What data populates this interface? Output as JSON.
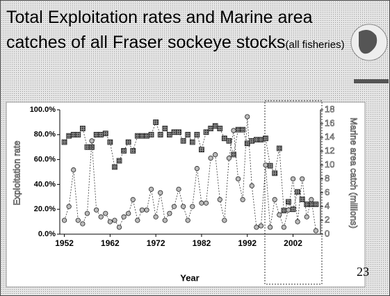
{
  "title": "Total Exploitation rates and Marine area catches of all Fraser sockeye stocks",
  "title_note": "(all fisheries)",
  "slide_number": "23",
  "chart_data": {
    "type": "line",
    "x_label": "Year",
    "y_label": "Exploitation rate",
    "y2_label": "Marine area catch (millions)",
    "x": [
      1952,
      1953,
      1954,
      1955,
      1956,
      1957,
      1958,
      1959,
      1960,
      1961,
      1962,
      1963,
      1964,
      1965,
      1966,
      1967,
      1968,
      1969,
      1970,
      1971,
      1972,
      1973,
      1974,
      1975,
      1976,
      1977,
      1978,
      1979,
      1980,
      1981,
      1982,
      1983,
      1984,
      1985,
      1986,
      1987,
      1988,
      1989,
      1990,
      1991,
      1992,
      1993,
      1994,
      1995,
      1996,
      1997,
      1998,
      1999,
      2000,
      2001,
      2002,
      2003,
      2004,
      2005,
      2006,
      2007
    ],
    "xlim": [
      1951,
      2008
    ],
    "xticks": [
      1952,
      1962,
      1972,
      1982,
      1992,
      2002
    ],
    "ylim": [
      0,
      100
    ],
    "yticks": [
      {
        "value": 0,
        "label": "0.0%"
      },
      {
        "value": 20,
        "label": "20.0%"
      },
      {
        "value": 40,
        "label": "40.0%"
      },
      {
        "value": 60,
        "label": "60.0%"
      },
      {
        "value": 80,
        "label": "80.0%"
      },
      {
        "value": 100,
        "label": "100.0%"
      }
    ],
    "y2lim": [
      0,
      18
    ],
    "y2ticks": [
      0,
      2,
      4,
      6,
      8,
      10,
      12,
      14,
      16,
      18
    ],
    "series": [
      {
        "name": "Exploitation rate",
        "color": "#555555",
        "marker": "square",
        "values": [
          74,
          79,
          80,
          80,
          85,
          70,
          70,
          80,
          80,
          81,
          74,
          54,
          59,
          67,
          74,
          67,
          79,
          79,
          79,
          80,
          90,
          80,
          85,
          80,
          82,
          82,
          75,
          80,
          74,
          80,
          68,
          82,
          85,
          87,
          85,
          77,
          75,
          64,
          84,
          84,
          73,
          75,
          76,
          76,
          77,
          55,
          49,
          69,
          19,
          26,
          20,
          34,
          28,
          24,
          24,
          24
        ]
      },
      {
        "name": "Marine area catch",
        "color": "#bbbbbb",
        "marker": "circle",
        "axis": "y2",
        "values": [
          2,
          4,
          9.3,
          2,
          1.5,
          3,
          13.5,
          3.5,
          2.5,
          3,
          1.8,
          2,
          1,
          2.5,
          3,
          5,
          2,
          3.5,
          3.5,
          6.5,
          2.5,
          6,
          2,
          3,
          4,
          6.5,
          4,
          2,
          4,
          9.5,
          4.5,
          4.5,
          11,
          11.5,
          5,
          2,
          11,
          15,
          8,
          5,
          17,
          7,
          1,
          1.2,
          10,
          1,
          5,
          2.8,
          1,
          3.5,
          8,
          1.8,
          8,
          2.5,
          5,
          0.5
        ]
      }
    ]
  }
}
